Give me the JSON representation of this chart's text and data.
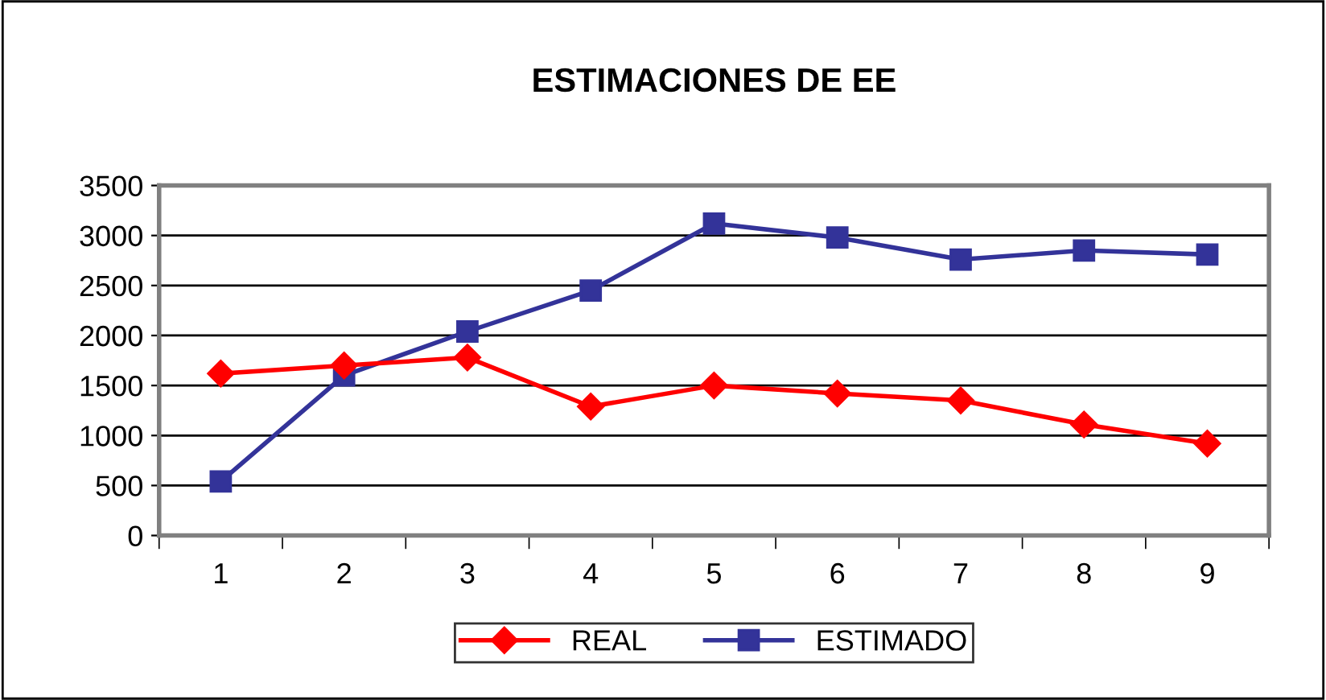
{
  "chart_data": {
    "type": "line",
    "title": "ESTIMACIONES DE EE",
    "categories": [
      "1",
      "2",
      "3",
      "4",
      "5",
      "6",
      "7",
      "8",
      "9"
    ],
    "series": [
      {
        "name": "REAL",
        "color": "#ff0000",
        "marker": "diamond",
        "values": [
          1620,
          1700,
          1780,
          1290,
          1500,
          1420,
          1350,
          1110,
          920
        ]
      },
      {
        "name": "ESTIMADO",
        "color": "#333399",
        "marker": "square",
        "values": [
          540,
          1600,
          2040,
          2450,
          3120,
          2980,
          2760,
          2850,
          2810
        ]
      }
    ],
    "ylim": [
      0,
      3500
    ],
    "yticks": [
      0,
      500,
      1000,
      1500,
      2000,
      2500,
      3000,
      3500
    ],
    "grid": "y",
    "legend": "bottom",
    "line_style": "solid"
  }
}
